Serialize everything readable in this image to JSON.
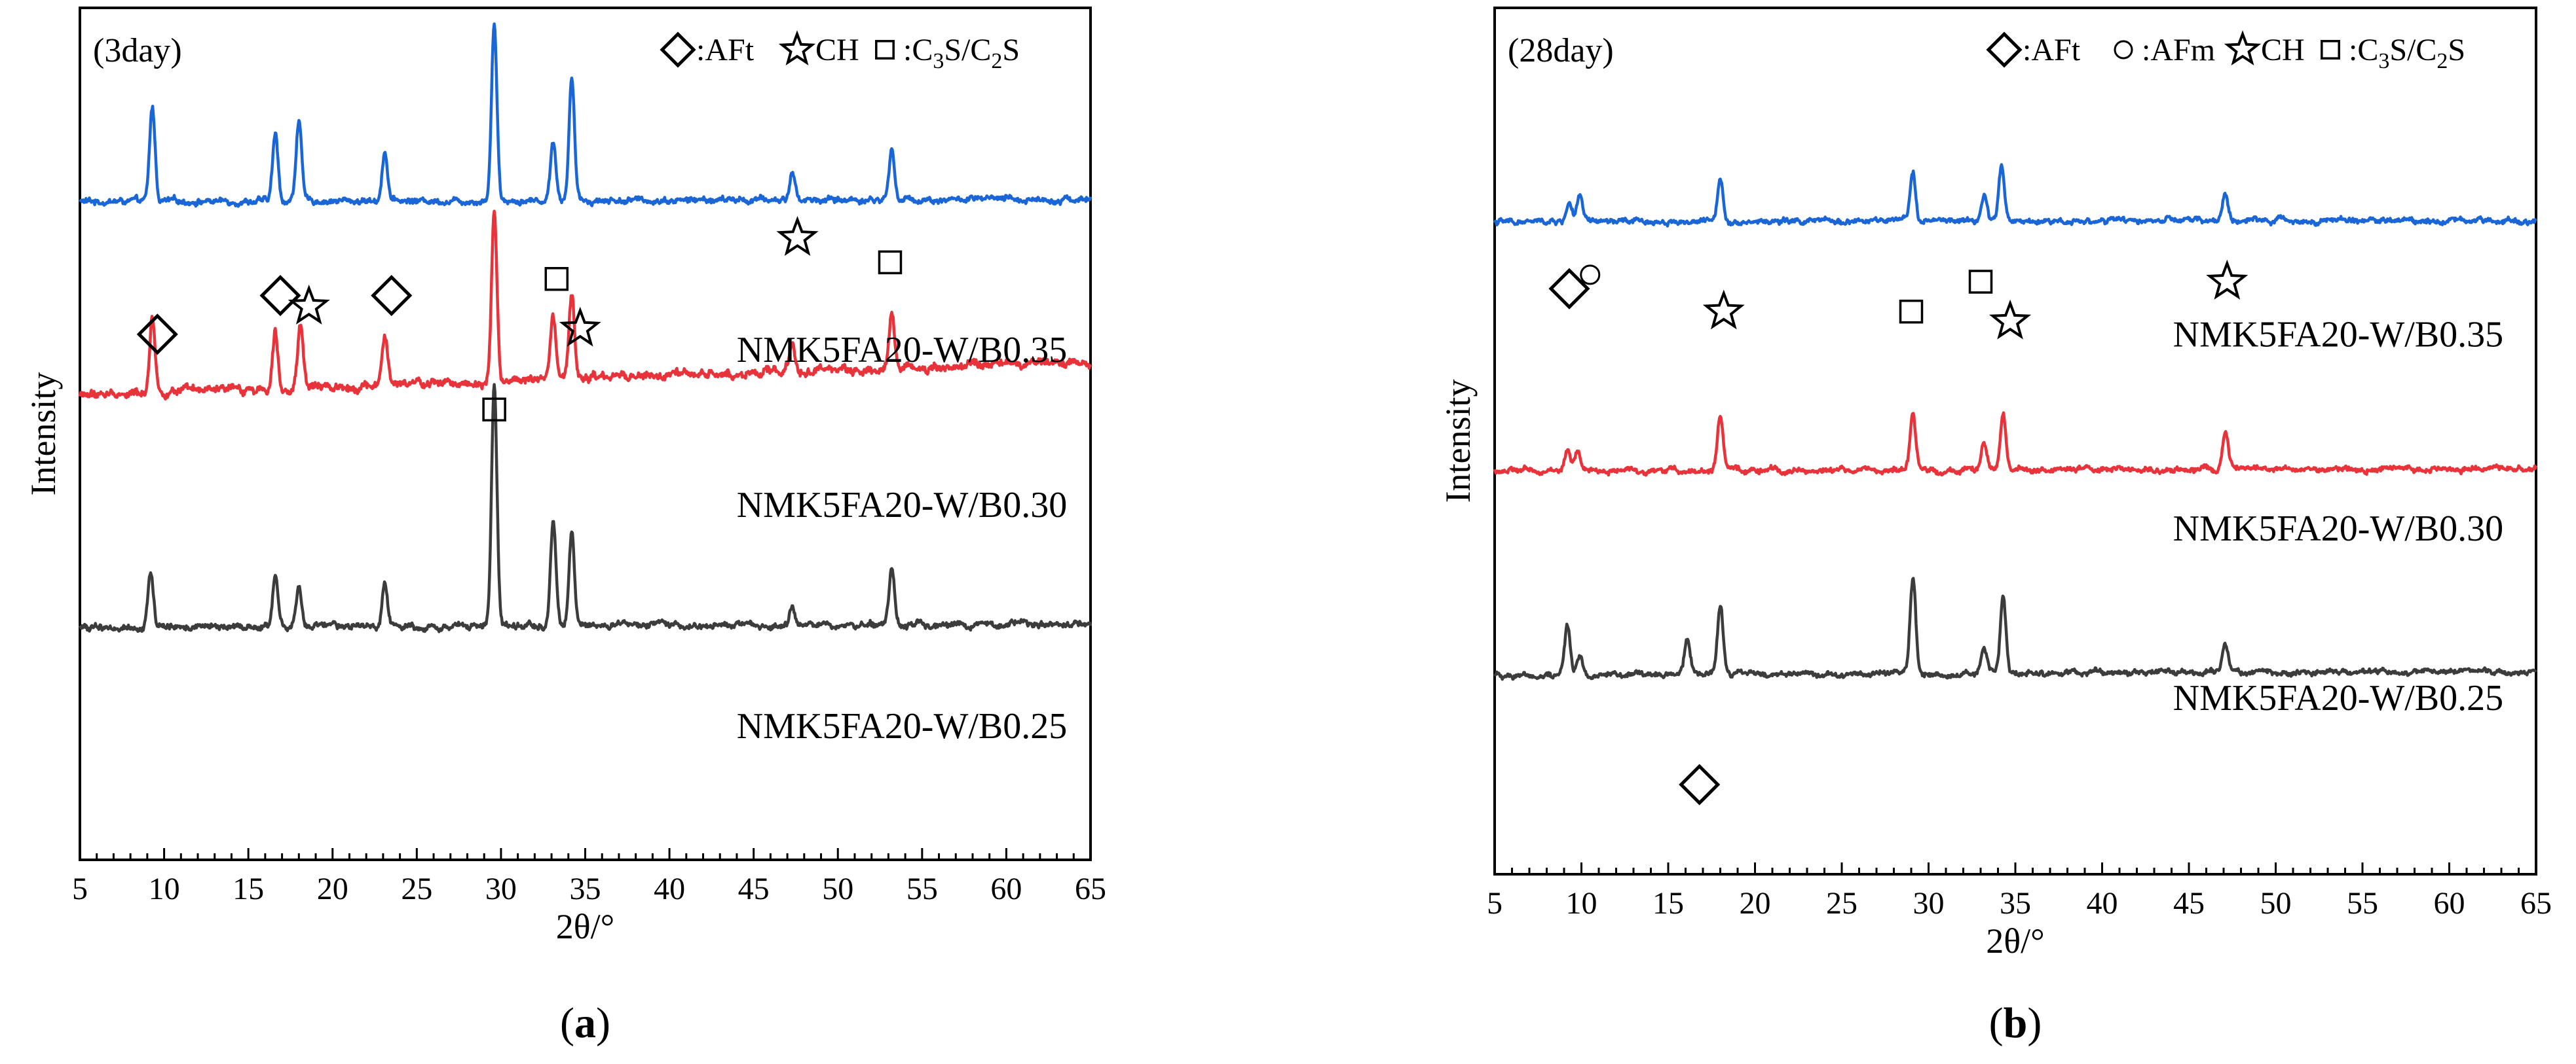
{
  "chart_data": [
    {
      "panel": "a",
      "type": "line",
      "title": "(3day)",
      "caption_letter": "a",
      "xlabel": "2θ/°",
      "ylabel": "Intensity",
      "xlim": [
        5,
        65
      ],
      "xticks": [
        5,
        10,
        15,
        20,
        25,
        30,
        35,
        40,
        45,
        50,
        55,
        60,
        65
      ],
      "legend": [
        {
          "marker": "diamond",
          "label": ":AFt"
        },
        {
          "marker": "star",
          "label": "CH"
        },
        {
          "marker": "square",
          "label": ":C3S/C2S",
          "parts": [
            ":C",
            "3",
            "S/C",
            "2",
            "S"
          ]
        }
      ],
      "series": [
        {
          "name": "NMK5FA20-W/B0.35",
          "color": "#1a66d6",
          "baseline": 0.2,
          "slope": -0.02,
          "noise": 0.03,
          "peaks": [
            [
              9.3,
              0.85
            ],
            [
              16.6,
              0.6
            ],
            [
              18.0,
              0.75
            ],
            [
              23.1,
              0.45
            ],
            [
              29.6,
              1.6
            ],
            [
              33.1,
              0.55
            ],
            [
              34.2,
              1.1
            ],
            [
              47.3,
              0.25
            ],
            [
              53.2,
              0.45
            ]
          ]
        },
        {
          "name": "NMK5FA20-W/B0.30",
          "color": "#e8333a",
          "baseline": 1.95,
          "slope": -0.3,
          "noise": 0.04,
          "peaks": [
            [
              9.3,
              0.7
            ],
            [
              16.6,
              0.55
            ],
            [
              18.1,
              0.55
            ],
            [
              23.1,
              0.45
            ],
            [
              29.6,
              1.55
            ],
            [
              33.1,
              0.55
            ],
            [
              34.2,
              0.75
            ],
            [
              47.3,
              0.3
            ],
            [
              53.2,
              0.5
            ]
          ]
        },
        {
          "name": "NMK5FA20-W/B0.25",
          "color": "#3c3c3c",
          "baseline": 4.05,
          "slope": -0.03,
          "noise": 0.03,
          "peaks": [
            [
              9.2,
              0.5
            ],
            [
              16.6,
              0.45
            ],
            [
              18.0,
              0.35
            ],
            [
              23.1,
              0.4
            ],
            [
              29.6,
              2.2
            ],
            [
              33.1,
              0.95
            ],
            [
              34.2,
              0.85
            ],
            [
              47.3,
              0.15
            ],
            [
              53.2,
              0.5
            ]
          ]
        }
      ],
      "annotations": [
        {
          "marker": "diamond",
          "x": 9.6,
          "y": 1.4
        },
        {
          "marker": "diamond",
          "x": 16.9,
          "y": 1.05
        },
        {
          "marker": "star",
          "x": 18.6,
          "y": 1.15
        },
        {
          "marker": "diamond",
          "x": 23.5,
          "y": 1.05
        },
        {
          "marker": "square",
          "x": 29.6,
          "y": 2.08
        },
        {
          "marker": "square",
          "x": 33.3,
          "y": 0.9
        },
        {
          "marker": "star",
          "x": 34.7,
          "y": 1.35
        },
        {
          "marker": "star",
          "x": 47.6,
          "y": 0.53
        },
        {
          "marker": "square",
          "x": 53.1,
          "y": 0.75
        }
      ],
      "labels": [
        {
          "text": "NMK5FA20-W/B0.35",
          "x": 53.8,
          "y": 1.65
        },
        {
          "text": "NMK5FA20-W/B0.30",
          "x": 53.8,
          "y": 3.05
        },
        {
          "text": "NMK5FA20-W/B0.25",
          "x": 53.8,
          "y": 5.05
        }
      ],
      "ylim": [
        -1.55,
        6.15
      ]
    },
    {
      "panel": "b",
      "type": "line",
      "title": "(28day)",
      "caption_letter": "b",
      "xlabel": "2θ/°",
      "ylabel": "Intensity",
      "xlim": [
        5,
        65
      ],
      "xticks": [
        5,
        10,
        15,
        20,
        25,
        30,
        35,
        40,
        45,
        50,
        55,
        60,
        65
      ],
      "legend": [
        {
          "marker": "diamond",
          "label": ":AFt"
        },
        {
          "marker": "circle",
          "label": ":AFm"
        },
        {
          "marker": "star",
          "label": "CH"
        },
        {
          "marker": "square",
          "label": ":C3S/C2S",
          "parts": [
            ":C",
            "3",
            "S/C",
            "2",
            "S"
          ]
        }
      ],
      "series": [
        {
          "name": "NMK5FA20-W/B0.35",
          "color": "#1a66d6",
          "baseline": 0.05,
          "slope": -0.02,
          "noise": 0.03,
          "peaks": [
            [
              9.3,
              0.2
            ],
            [
              9.9,
              0.25
            ],
            [
              18.0,
              0.45
            ],
            [
              29.1,
              0.5
            ],
            [
              33.2,
              0.25
            ],
            [
              34.2,
              0.55
            ],
            [
              47.1,
              0.25
            ]
          ]
        },
        {
          "name": "NMK5FA20-W/B0.30",
          "color": "#e8333a",
          "baseline": 2.55,
          "slope": -0.02,
          "noise": 0.03,
          "peaks": [
            [
              9.2,
              0.2
            ],
            [
              9.8,
              0.2
            ],
            [
              18.0,
              0.55
            ],
            [
              29.1,
              0.55
            ],
            [
              33.2,
              0.25
            ],
            [
              34.3,
              0.55
            ],
            [
              47.1,
              0.35
            ]
          ]
        },
        {
          "name": "NMK5FA20-W/B0.25",
          "color": "#3c3c3c",
          "baseline": 4.6,
          "slope": -0.04,
          "noise": 0.03,
          "peaks": [
            [
              9.2,
              0.5
            ],
            [
              9.9,
              0.2
            ],
            [
              16.1,
              0.35
            ],
            [
              18.0,
              0.7
            ],
            [
              29.1,
              0.95
            ],
            [
              33.2,
              0.25
            ],
            [
              34.3,
              0.75
            ],
            [
              47.1,
              0.3
            ]
          ]
        }
      ],
      "annotations": [
        {
          "marker": "diamond",
          "x": 9.3,
          "y": 0.72
        },
        {
          "marker": "circle",
          "x": 10.5,
          "y": 0.58
        },
        {
          "marker": "star",
          "x": 18.2,
          "y": 0.95
        },
        {
          "marker": "square",
          "x": 29.0,
          "y": 0.95
        },
        {
          "marker": "square",
          "x": 33.0,
          "y": 0.65
        },
        {
          "marker": "star",
          "x": 34.7,
          "y": 1.05
        },
        {
          "marker": "star",
          "x": 47.2,
          "y": 0.65
        },
        {
          "marker": "diamond",
          "x": 16.8,
          "y": 5.7
        }
      ],
      "labels": [
        {
          "text": "NMK5FA20-W/B0.35",
          "x": 53.6,
          "y": 1.3
        },
        {
          "text": "NMK5FA20-W/B0.30",
          "x": 53.6,
          "y": 3.25
        },
        {
          "text": "NMK5FA20-W/B0.25",
          "x": 53.6,
          "y": 4.95
        }
      ],
      "ylim": [
        -2.1,
        6.6
      ]
    }
  ]
}
